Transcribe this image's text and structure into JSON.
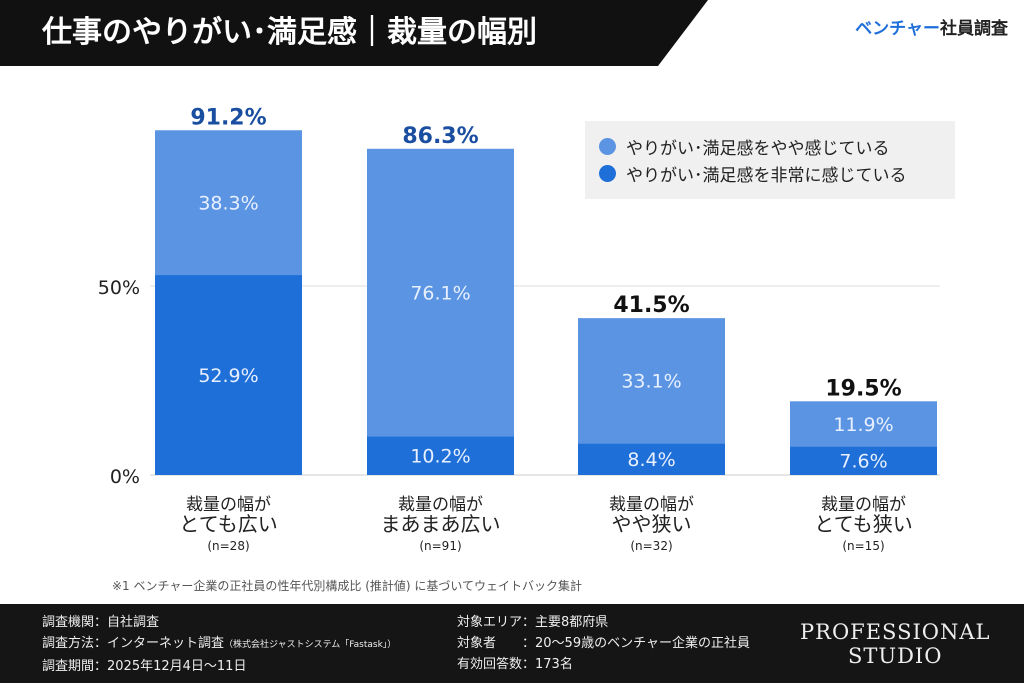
{
  "header": {
    "title": "仕事のやりがい･満足感｜裁量の幅別",
    "brand_accent": "ベンチャー",
    "brand_rest": "社員調査"
  },
  "chart_data": {
    "type": "bar",
    "stacked": true,
    "categories": [
      [
        "裁量の幅が",
        "とても広い",
        "(n=28)"
      ],
      [
        "裁量の幅が",
        "まあまあ広い",
        "(n=91)"
      ],
      [
        "裁量の幅が",
        "やや狭い",
        "(n=32)"
      ],
      [
        "裁量の幅が",
        "とても狭い",
        "(n=15)"
      ]
    ],
    "series": [
      {
        "name": "やりがい･満足感を非常に感じている",
        "values": [
          52.9,
          10.2,
          8.4,
          7.6
        ],
        "color": "#1f6fd8"
      },
      {
        "name": "やりがい･満足感をやや感じている",
        "values": [
          38.3,
          76.1,
          33.1,
          11.9
        ],
        "color": "#5b94e2"
      }
    ],
    "totals": [
      91.2,
      86.3,
      41.5,
      19.5
    ],
    "total_colors": [
      "#1a4ea0",
      "#1a4ea0",
      "#111111",
      "#111111"
    ],
    "yticks": [
      0,
      50
    ],
    "ylim": [
      0,
      100
    ],
    "legend": "top-right"
  },
  "labels": {
    "tick0": "0%",
    "tick50": "50%"
  },
  "note": "※1 ベンチャー企業の正社員の性年代別構成比 (推計値) に基づいてウェイトバック集計",
  "footer": {
    "left": [
      "調査機関：自社調査",
      "調査方法：インターネット調査",
      "調査期間：2025年12月4日〜11日"
    ],
    "left_small": "（株式会社ジャストシステム「Fastask」）",
    "right": [
      "対象エリア：主要8都府県",
      "対象者　　：20〜59歳のベンチャー企業の正社員",
      "有効回答数：173名"
    ],
    "logo": [
      "PROFESSIONAL",
      "STUDIO"
    ]
  }
}
